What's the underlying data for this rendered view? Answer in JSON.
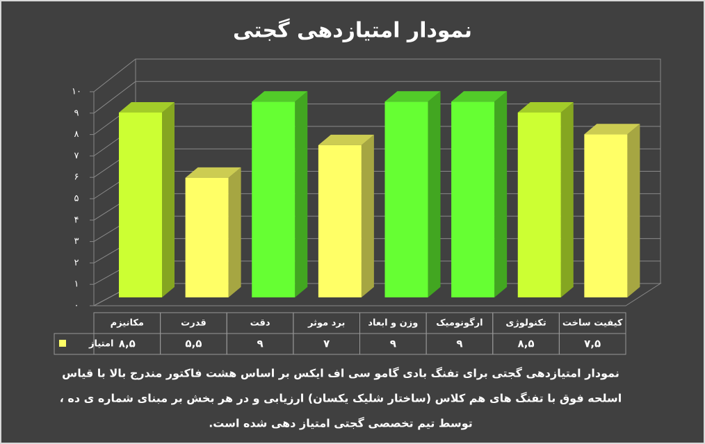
{
  "chart_data": {
    "type": "bar3d",
    "title": "نمودار امتیازدهی گجتی",
    "categories": [
      "مکانیزم",
      "قدرت",
      "دقت",
      "برد موثر",
      "وزن و ابعاد",
      "ارگونومیک",
      "تکنولوژی",
      "کیفیت ساخت"
    ],
    "series": [
      {
        "name": "امتیاز",
        "color": "#ffff66",
        "colors": [
          "#ccff33",
          "#ffff66",
          "#66ff33",
          "#ffff66",
          "#66ff33",
          "#66ff33",
          "#ccff33",
          "#ffff66"
        ],
        "values": [
          8.5,
          5.5,
          9,
          7,
          9,
          9,
          8.5,
          7.5
        ],
        "value_labels": [
          "۸,۵",
          "۵,۵",
          "۹",
          "۷",
          "۹",
          "۹",
          "۸,۵",
          "۷,۵"
        ]
      }
    ],
    "ylim": [
      0,
      10
    ],
    "yticks": [
      {
        "value": 0,
        "label": "۰"
      },
      {
        "value": 1,
        "label": "۱"
      },
      {
        "value": 2,
        "label": "۲"
      },
      {
        "value": 3,
        "label": "۳"
      },
      {
        "value": 4,
        "label": "۴"
      },
      {
        "value": 5,
        "label": "۵"
      },
      {
        "value": 6,
        "label": "۶"
      },
      {
        "value": 7,
        "label": "۷"
      },
      {
        "value": 8,
        "label": "۸"
      },
      {
        "value": 9,
        "label": "۹"
      },
      {
        "value": 10,
        "label": "۱۰"
      }
    ],
    "grid": true,
    "caption": [
      "نمودار امتیازدهی گجتی برای تفنگ بادی گامو سی اف ایکس بر اساس هشت فاکتور مندرج بالا با قیاس",
      "اسلحه فوق با تفنگ های هم کلاس (ساختار شلیک یکسان) ارزیابی و در هر بخش بر مبنای شماره ی ده ،",
      "توسط تیم تخصصی گجتی امتیاز دهی شده است."
    ]
  }
}
